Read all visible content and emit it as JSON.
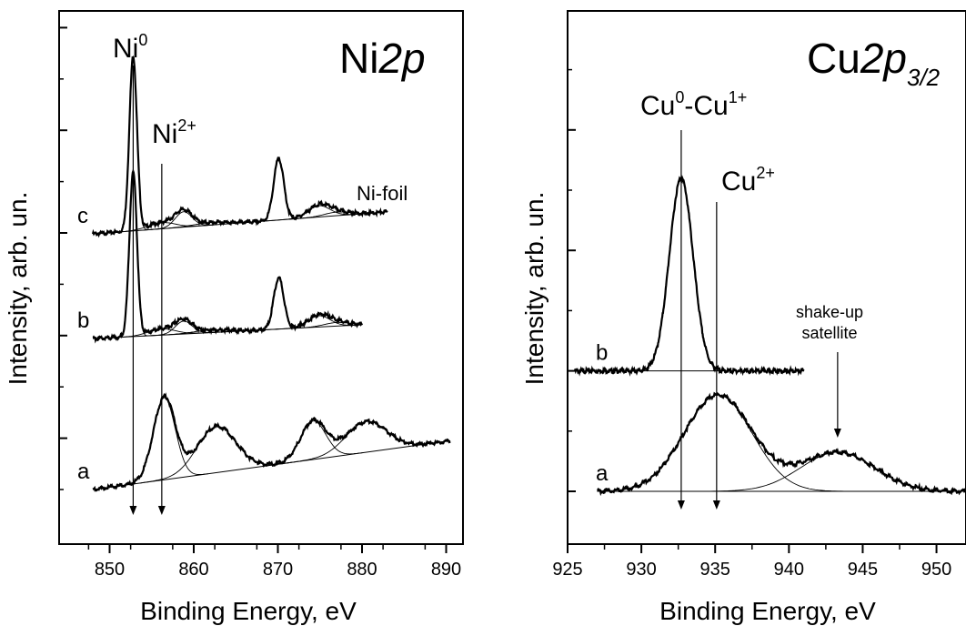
{
  "chart_data": [
    {
      "type": "line",
      "panel": "left",
      "title": {
        "main": "Ni",
        "italic": "2p"
      },
      "xlabel": "Binding Energy, eV",
      "ylabel": "Intensity, arb. un.",
      "xlim": [
        844,
        892
      ],
      "ylim": [
        0,
        10
      ],
      "xticks": [
        850,
        860,
        870,
        880,
        890
      ],
      "yticks_major": [
        1,
        3,
        5,
        7,
        9
      ],
      "yticks_minor": [
        0,
        2,
        4,
        6,
        8,
        10
      ],
      "grid": false,
      "annotations": [
        {
          "text": "Ni",
          "sup": "0",
          "x": 852.8
        },
        {
          "text": "Ni",
          "sup": "2+",
          "x": 856.2
        },
        {
          "text": "Ni-foil",
          "x": 879.5,
          "y": 5.73
        }
      ],
      "series": [
        {
          "name": "c",
          "baseline": [
            [
              848,
              4.98
            ],
            [
              883,
              5.41
            ]
          ],
          "peaks": [
            [
              852.8,
              3.4,
              0.45
            ],
            [
              856.2,
              0.12,
              1.6
            ],
            [
              858.8,
              0.3,
              1.0
            ],
            [
              862.0,
              0.05,
              2.0
            ],
            [
              870.1,
              1.2,
              0.6
            ],
            [
              874.9,
              0.22,
              1.3
            ],
            [
              877.0,
              0.07,
              1.5
            ]
          ]
        },
        {
          "name": "b",
          "baseline": [
            [
              848,
              2.94
            ],
            [
              880,
              3.21
            ]
          ],
          "peaks": [
            [
              852.8,
              3.2,
              0.45
            ],
            [
              856.2,
              0.12,
              1.6
            ],
            [
              858.8,
              0.25,
              1.0
            ],
            [
              862.0,
              0.05,
              2.0
            ],
            [
              870.1,
              1.0,
              0.6
            ],
            [
              874.9,
              0.22,
              1.3
            ],
            [
              877.0,
              0.07,
              1.5
            ]
          ]
        },
        {
          "name": "a",
          "baseline": [
            [
              848,
              0.0
            ],
            [
              890.5,
              0.95
            ]
          ],
          "peaks": [
            [
              856.5,
              1.6,
              1.3
            ],
            [
              862.7,
              0.9,
              2.3
            ],
            [
              874.2,
              0.75,
              1.5
            ],
            [
              880.5,
              0.6,
              2.4
            ]
          ]
        }
      ]
    },
    {
      "type": "line",
      "panel": "right",
      "title": {
        "main": "Cu",
        "italic": "2p",
        "sub": "3/2"
      },
      "xlabel": "Binding Energy, eV",
      "ylabel": "Intensity, arb. un.",
      "xlim": [
        925,
        952
      ],
      "ylim": [
        0,
        10
      ],
      "xticks": [
        925,
        930,
        935,
        940,
        945,
        950
      ],
      "yticks_major": [
        0,
        2,
        4,
        6,
        8
      ],
      "yticks_minor": [
        1,
        3,
        5,
        7,
        9
      ],
      "grid": false,
      "annotations": [
        {
          "text": "Cu",
          "sup": "0",
          "text2": "-Cu",
          "sup2": "1+",
          "x": 932.7
        },
        {
          "text": "Cu",
          "sup": "2+",
          "x": 935.1
        },
        {
          "text": "shake-up",
          "text2": "satellite",
          "x": 943.3
        }
      ],
      "series": [
        {
          "name": "b",
          "baseline": [
            [
              925.5,
              2.0
            ],
            [
              941,
              2.0
            ]
          ],
          "peaks": [
            [
              932.7,
              3.2,
              0.8
            ]
          ]
        },
        {
          "name": "a",
          "baseline": [
            [
              927,
              0.0
            ],
            [
              952,
              0.0
            ]
          ],
          "peaks": [
            [
              935.2,
              1.6,
              2.3
            ],
            [
              943.3,
              0.65,
              2.5
            ]
          ]
        }
      ]
    }
  ]
}
